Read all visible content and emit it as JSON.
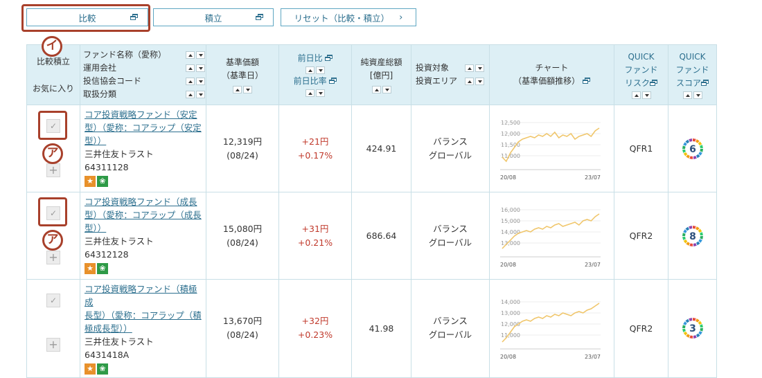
{
  "top_buttons": {
    "compare": "比較",
    "accumulate": "積立",
    "reset": "リセット（比較・積立）"
  },
  "markers": {
    "a": "ア",
    "i": "イ"
  },
  "headers": {
    "compare_accum": "比較積立",
    "favorite": "お気に入り",
    "name_lines": [
      "ファンド名称（愛称）",
      "運用会社",
      "投信協会コード",
      "取扱分類"
    ],
    "nav": [
      "基準価額",
      "（基準日）"
    ],
    "change_yen": "前日比",
    "change_pct": "前日比率",
    "aum": [
      "純資産総額",
      "[億円]"
    ],
    "target": [
      "投資対象",
      "投資エリア"
    ],
    "chart": [
      "チャート",
      "（基準価額推移）"
    ],
    "risk": [
      "QUICK",
      "ファンド",
      "リスク"
    ],
    "score": [
      "QUICK",
      "ファンド",
      "スコア"
    ]
  },
  "rows": [
    {
      "name_lines": [
        "コア投資戦略ファンド（安定",
        "型）（愛称：コアラップ（安定",
        "型））"
      ],
      "company": "三井住友トラスト",
      "code": "64311128",
      "nav": "12,319円",
      "date": "(08/24)",
      "change_yen": "+21円",
      "change_pct": "+0.17%",
      "aum": "424.91",
      "target": "バランス",
      "area": "グローバル",
      "chart_y_ticks": [
        "12,500",
        "12,000",
        "11,500",
        "11,000"
      ],
      "chart_x_ticks": [
        "20/08",
        "23/07"
      ],
      "risk": "QFR1",
      "score": "6"
    },
    {
      "name_lines": [
        "コア投資戦略ファンド（成長",
        "型）（愛称：コアラップ（成長",
        "型））"
      ],
      "company": "三井住友トラスト",
      "code": "64312128",
      "nav": "15,080円",
      "date": "(08/24)",
      "change_yen": "+31円",
      "change_pct": "+0.21%",
      "aum": "686.64",
      "target": "バランス",
      "area": "グローバル",
      "chart_y_ticks": [
        "16,000",
        "15,000",
        "14,000",
        "13,000"
      ],
      "chart_x_ticks": [
        "20/08",
        "23/07"
      ],
      "risk": "QFR2",
      "score": "8"
    },
    {
      "name_lines": [
        "コア投資戦略ファンド（積極成",
        "長型）（愛称：コアラップ（積",
        "極成長型））"
      ],
      "company": "三井住友トラスト",
      "code": "6431418A",
      "nav": "13,670円",
      "date": "(08/24)",
      "change_yen": "+32円",
      "change_pct": "+0.23%",
      "aum": "41.98",
      "target": "バランス",
      "area": "グローバル",
      "chart_y_ticks": [
        "14,000",
        "13,000",
        "12,000",
        "11,000"
      ],
      "chart_x_ticks": [
        "20/08",
        "23/07"
      ],
      "risk": "QFR2",
      "score": "3"
    }
  ],
  "colors": {
    "accent": "#2c6f8e",
    "header_bg": "#ddeff5",
    "highlight": "#a8402b",
    "up": "#c0392b",
    "line": "#f0c66b"
  }
}
